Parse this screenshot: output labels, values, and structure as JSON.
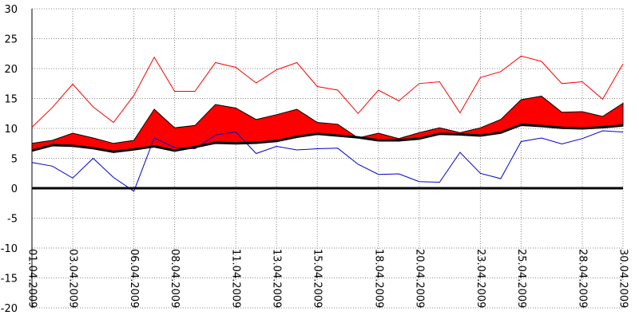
{
  "chart_data": {
    "type": "line",
    "title": "",
    "xlabel": "",
    "ylabel": "",
    "ylim": [
      -20,
      30
    ],
    "yticks": [
      30,
      25,
      20,
      15,
      10,
      5,
      0,
      -5,
      -10,
      -15,
      -20
    ],
    "grid": true,
    "x": [
      "01.04.2009",
      "02.04.2009",
      "03.04.2009",
      "04.04.2009",
      "05.04.2009",
      "06.04.2009",
      "07.04.2009",
      "08.04.2009",
      "09.04.2009",
      "10.04.2009",
      "11.04.2009",
      "12.04.2009",
      "13.04.2009",
      "14.04.2009",
      "15.04.2009",
      "16.04.2009",
      "17.04.2009",
      "18.04.2009",
      "19.04.2009",
      "20.04.2009",
      "21.04.2009",
      "22.04.2009",
      "23.04.2009",
      "24.04.2009",
      "25.04.2009",
      "26.04.2009",
      "27.04.2009",
      "28.04.2009",
      "29.04.2009",
      "30.04.2009"
    ],
    "xtick_labels": [
      "01.04.2009",
      "03.04.2009",
      "06.04.2009",
      "08.04.2009",
      "11.04.2009",
      "13.04.2009",
      "15.04.2009",
      "18.04.2009",
      "20.04.2009",
      "23.04.2009",
      "25.04.2009",
      "28.04.2009",
      "30.04.2009"
    ],
    "series": [
      {
        "role": "max",
        "color": "#ff0000",
        "values": [
          10.2,
          13.5,
          17.4,
          13.6,
          11.0,
          15.5,
          21.9,
          16.2,
          16.2,
          21.0,
          20.2,
          17.6,
          19.8,
          21.0,
          17.0,
          16.4,
          12.5,
          16.4,
          14.6,
          17.5,
          17.8,
          12.6,
          18.5,
          19.5,
          22.1,
          21.2,
          17.5,
          17.8,
          14.9,
          20.8
        ]
      },
      {
        "role": "upper-band",
        "color": "#ff0000",
        "values": [
          7.5,
          8.0,
          9.2,
          8.4,
          7.5,
          8.0,
          13.2,
          10.1,
          10.5,
          14.0,
          13.4,
          11.5,
          12.3,
          13.2,
          11.0,
          10.7,
          8.4,
          9.2,
          8.3,
          9.3,
          10.1,
          9.3,
          10.1,
          11.5,
          14.8,
          15.4,
          12.7,
          12.8,
          12.0,
          14.2
        ]
      },
      {
        "role": "mean",
        "color": "#000000",
        "values": [
          6.3,
          7.2,
          7.1,
          6.7,
          6.1,
          6.5,
          7.0,
          6.3,
          6.9,
          7.6,
          7.5,
          7.6,
          7.9,
          8.6,
          9.1,
          8.8,
          8.5,
          8.0,
          8.0,
          8.3,
          9.1,
          9.0,
          8.8,
          9.3,
          10.6,
          10.4,
          10.1,
          10.0,
          10.2,
          10.5
        ]
      },
      {
        "role": "min",
        "color": "#0000cc",
        "values": [
          4.3,
          3.7,
          1.7,
          5.0,
          1.8,
          -0.5,
          8.4,
          6.8,
          6.6,
          8.9,
          9.4,
          5.8,
          7.0,
          6.4,
          6.6,
          6.7,
          4.0,
          2.3,
          2.4,
          1.1,
          1.0,
          6.0,
          2.5,
          1.6,
          7.8,
          8.4,
          7.4,
          8.3,
          9.6,
          9.4
        ]
      }
    ],
    "zero_line": 0
  }
}
